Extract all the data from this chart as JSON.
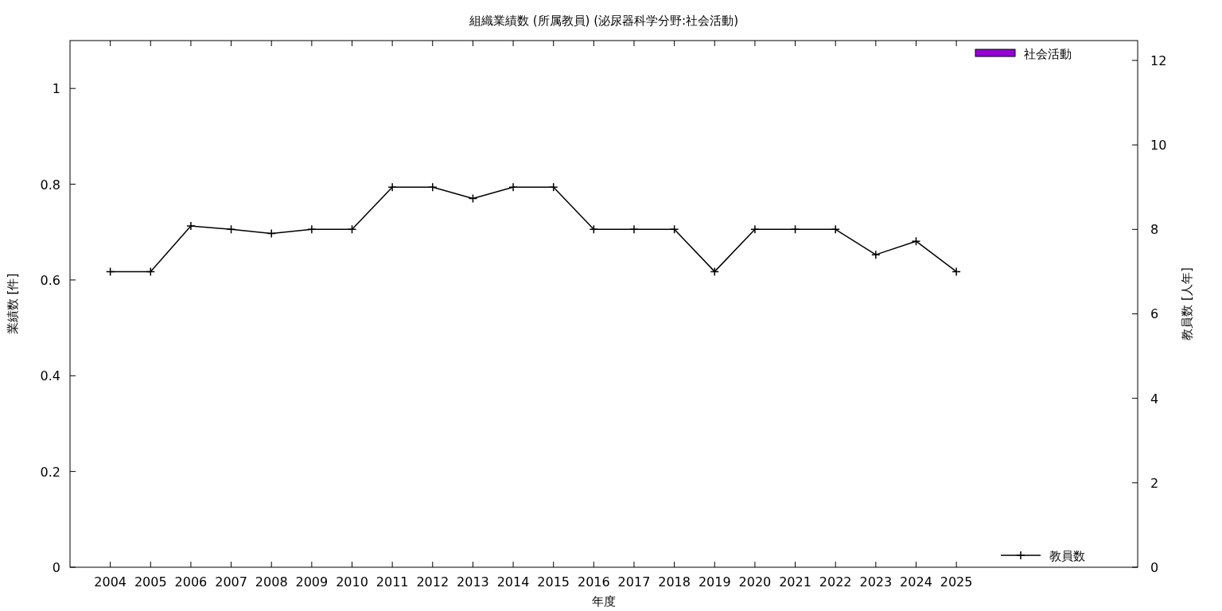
{
  "chart_data": {
    "type": "bar",
    "title": "組織業績数 (所属教員) (泌尿器科学分野:社会活動)",
    "xlabel": "年度",
    "ylabel": "業績数 [件]",
    "y2label": "教員数 [人年]",
    "x": [
      2004,
      2005,
      2006,
      2007,
      2008,
      2009,
      2010,
      2011,
      2012,
      2013,
      2014,
      2015,
      2016,
      2017,
      2018,
      2019,
      2020,
      2021,
      2022,
      2023,
      2024,
      2025
    ],
    "xlim": [
      2003,
      2029.5
    ],
    "xticks": [
      2004,
      2005,
      2006,
      2007,
      2008,
      2009,
      2010,
      2011,
      2012,
      2013,
      2014,
      2015,
      2016,
      2017,
      2018,
      2019,
      2020,
      2021,
      2022,
      2023,
      2024,
      2025
    ],
    "ylim": [
      0,
      1.1
    ],
    "yticks": [
      0,
      0.2,
      0.4,
      0.6,
      0.8,
      1
    ],
    "y2lim": [
      0,
      12.47
    ],
    "y2ticks": [
      0,
      2,
      4,
      6,
      8,
      10,
      12
    ],
    "legend": "right",
    "grid": false,
    "marker": "cross",
    "line_style": "solid",
    "series": [
      {
        "name": "社会活動",
        "color": "#9400d3",
        "values": [
          0,
          0,
          0,
          0,
          0,
          0,
          0,
          0,
          0,
          0,
          0,
          0,
          0,
          0,
          0,
          0,
          0,
          0,
          0,
          0,
          0,
          0
        ]
      },
      {
        "name": "教員数",
        "type": "line",
        "axis": "y2",
        "color": "#000000",
        "values": [
          7,
          7,
          8.08,
          8,
          7.9,
          8,
          8,
          9,
          9,
          8.73,
          9,
          9,
          8,
          8,
          8,
          7,
          8,
          8,
          8,
          7.4,
          7.72,
          7
        ]
      }
    ]
  }
}
